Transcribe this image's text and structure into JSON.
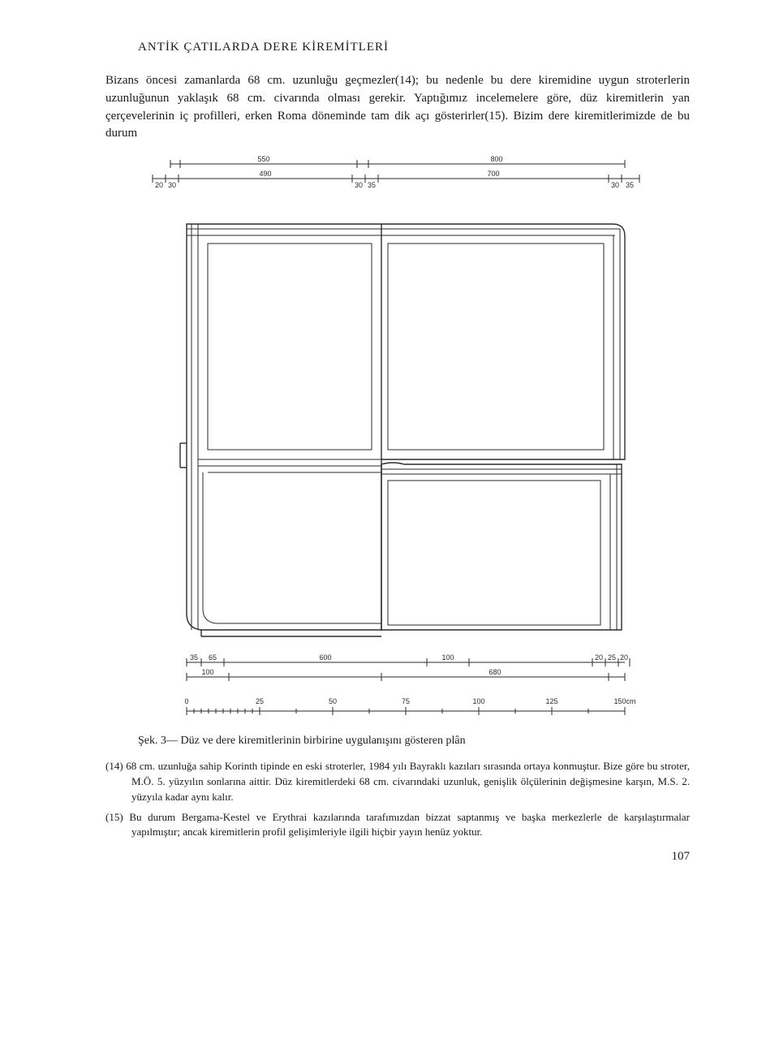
{
  "header": {
    "title": "ANTİK ÇATILARDA DERE KİREMİTLERİ"
  },
  "body": {
    "p1": "Bizans öncesi zamanlarda 68 cm. uzunluğu geçmezler(14); bu nedenle bu dere kiremidine uygun stroterlerin uzunluğunun yaklaşık 68 cm. civarında olması gerekir. Yaptığımız incelemelere göre, düz kiremitlerin yan çerçevelerinin iç profilleri, erken Roma döneminde tam dik açı gösterirler(15). Bizim dere kiremitlerimizde de bu durum"
  },
  "figure": {
    "top_dims": {
      "offset1": "20",
      "offset2": "30",
      "seg1": "550",
      "seg2": "490",
      "mid1": "30",
      "mid2": "35",
      "seg3": "800",
      "seg4": "700",
      "end1": "30",
      "end2": "35"
    },
    "bottom_dims": {
      "r1_a": "35",
      "r1_b": "65",
      "r1_c": "600",
      "r1_d": "100",
      "r1_e": "20",
      "r1_f": "25",
      "r1_g": "20",
      "r2_a": "100",
      "r2_b": "680"
    },
    "scale": {
      "ticks": [
        "0",
        "25",
        "50",
        "75",
        "100",
        "125",
        "150cm"
      ]
    },
    "stroke": "#2a2a2a",
    "stroke_thin": 1,
    "stroke_med": 1.4,
    "text_size": 9,
    "background": "#ffffff"
  },
  "caption": "Şek. 3— Düz ve dere kiremitlerinin birbirine uygulanışını gösteren plân",
  "footnotes": {
    "n14": "(14) 68 cm. uzunluğa sahip Korinth tipinde en eski stroterler, 1984 yılı Bayraklı kazıları sırasında ortaya konmuştur. Bize göre bu stroter, M.Ö. 5. yüzyılın sonlarına aittir. Düz kiremitlerdeki 68 cm. civarındaki uzunluk, genişlik ölçülerinin değişmesine karşın, M.S. 2. yüzyıla kadar aynı kalır.",
    "n15": "(15) Bu durum Bergama-Kestel ve Erythrai kazılarında tarafımızdan bizzat saptanmış ve başka merkezlerle de karşılaştırmalar yapılmıştır; ancak kiremitlerin profil gelişimleriyle ilgili hiçbir yayın henüz yoktur."
  },
  "page_number": "107"
}
